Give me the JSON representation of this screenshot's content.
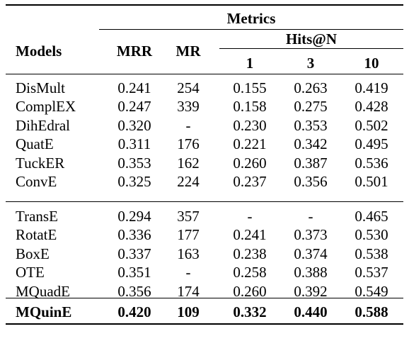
{
  "table": {
    "header": {
      "metrics": "Metrics",
      "models": "Models",
      "mrr": "MRR",
      "mr": "MR",
      "hits": "Hits@N",
      "h1": "1",
      "h3": "3",
      "h10": "10"
    },
    "groups": [
      [
        {
          "model": "DisMult",
          "mrr": "0.241",
          "mr": "254",
          "h1": "0.155",
          "h3": "0.263",
          "h10": "0.419"
        },
        {
          "model": "ComplEX",
          "mrr": "0.247",
          "mr": "339",
          "h1": "0.158",
          "h3": "0.275",
          "h10": "0.428"
        },
        {
          "model": "DihEdral",
          "mrr": "0.320",
          "mr": "-",
          "h1": "0.230",
          "h3": "0.353",
          "h10": "0.502"
        },
        {
          "model": "QuatE",
          "mrr": "0.311",
          "mr": "176",
          "h1": "0.221",
          "h3": "0.342",
          "h10": "0.495"
        },
        {
          "model": "TuckER",
          "mrr": "0.353",
          "mr": "162",
          "h1": "0.260",
          "h3": "0.387",
          "h10": "0.536"
        },
        {
          "model": "ConvE",
          "mrr": "0.325",
          "mr": "224",
          "h1": "0.237",
          "h3": "0.356",
          "h10": "0.501"
        }
      ],
      [
        {
          "model": "TransE",
          "mrr": "0.294",
          "mr": "357",
          "h1": "-",
          "h3": "-",
          "h10": "0.465"
        },
        {
          "model": "RotatE",
          "mrr": "0.336",
          "mr": "177",
          "h1": "0.241",
          "h3": "0.373",
          "h10": "0.530"
        },
        {
          "model": "BoxE",
          "mrr": "0.337",
          "mr": "163",
          "h1": "0.238",
          "h3": "0.374",
          "h10": "0.538"
        },
        {
          "model": "OTE",
          "mrr": "0.351",
          "mr": "-",
          "h1": "0.258",
          "h3": "0.388",
          "h10": "0.537"
        },
        {
          "model": "MQuadE",
          "mrr": "0.356",
          "mr": "174",
          "h1": "0.260",
          "h3": "0.392",
          "h10": "0.549"
        }
      ],
      [
        {
          "model": "MQuinE",
          "mrr": "0.420",
          "mr": "109",
          "h1": "0.332",
          "h3": "0.440",
          "h10": "0.588",
          "bold": true
        }
      ]
    ]
  }
}
